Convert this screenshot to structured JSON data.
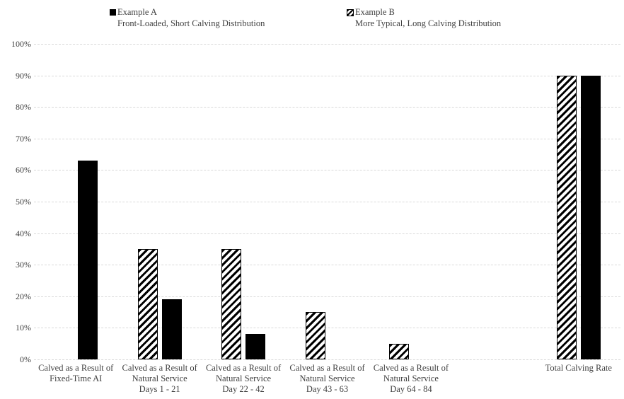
{
  "legend": {
    "series_a": {
      "label": "Example A",
      "description": "Front-Loaded, Short Calving Distribution",
      "color": "#000000",
      "pattern": "solid"
    },
    "series_b": {
      "label": "Example B",
      "description": "More Typical, Long Calving Distribution",
      "color": "#000000",
      "pattern": "diagonal-hatch"
    }
  },
  "chart_data": {
    "type": "bar",
    "title": "",
    "categories": [
      "Calved as a Result of Fixed-Time AI",
      "Calved as a Result of Natural Service Days 1 - 21",
      "Calved as a Result of Natural Service Day 22 - 42",
      "Calved as a Result of Natural Service Day 43 - 63",
      "Calved as a Result of Natural Service Day 64 - 84",
      "",
      "Total Calving Rate"
    ],
    "category_label_lines": [
      [
        "Calved as a Result of",
        "Fixed-Time AI"
      ],
      [
        "Calved as a Result of",
        "Natural Service",
        "Days 1 - 21"
      ],
      [
        "Calved as a Result of",
        "Natural Service",
        "Day 22 - 42"
      ],
      [
        "Calved as a Result of",
        "Natural Service",
        "Day 43 - 63"
      ],
      [
        "Calved as a Result of",
        "Natural Service",
        "Day 64 - 84"
      ],
      [],
      [
        "Total Calving Rate"
      ]
    ],
    "series": [
      {
        "name": "Example B",
        "pattern": "diagonal-hatch",
        "position_in_group": "left",
        "values": [
          0,
          35,
          35,
          15,
          5,
          null,
          90
        ]
      },
      {
        "name": "Example A",
        "pattern": "solid-black",
        "position_in_group": "right",
        "values": [
          63,
          19,
          8,
          0,
          0,
          null,
          90
        ]
      }
    ],
    "y_tick_labels": [
      "0%",
      "10%",
      "20%",
      "30%",
      "40%",
      "50%",
      "60%",
      "70%",
      "80%",
      "90%",
      "100%"
    ],
    "ylim": [
      0,
      100
    ],
    "y_step": 10,
    "grid": "horizontal-dashed",
    "gridline_color": "#d9d9d9",
    "text_color": "#404040",
    "legend_position": "top",
    "xlabel": "",
    "ylabel": ""
  }
}
